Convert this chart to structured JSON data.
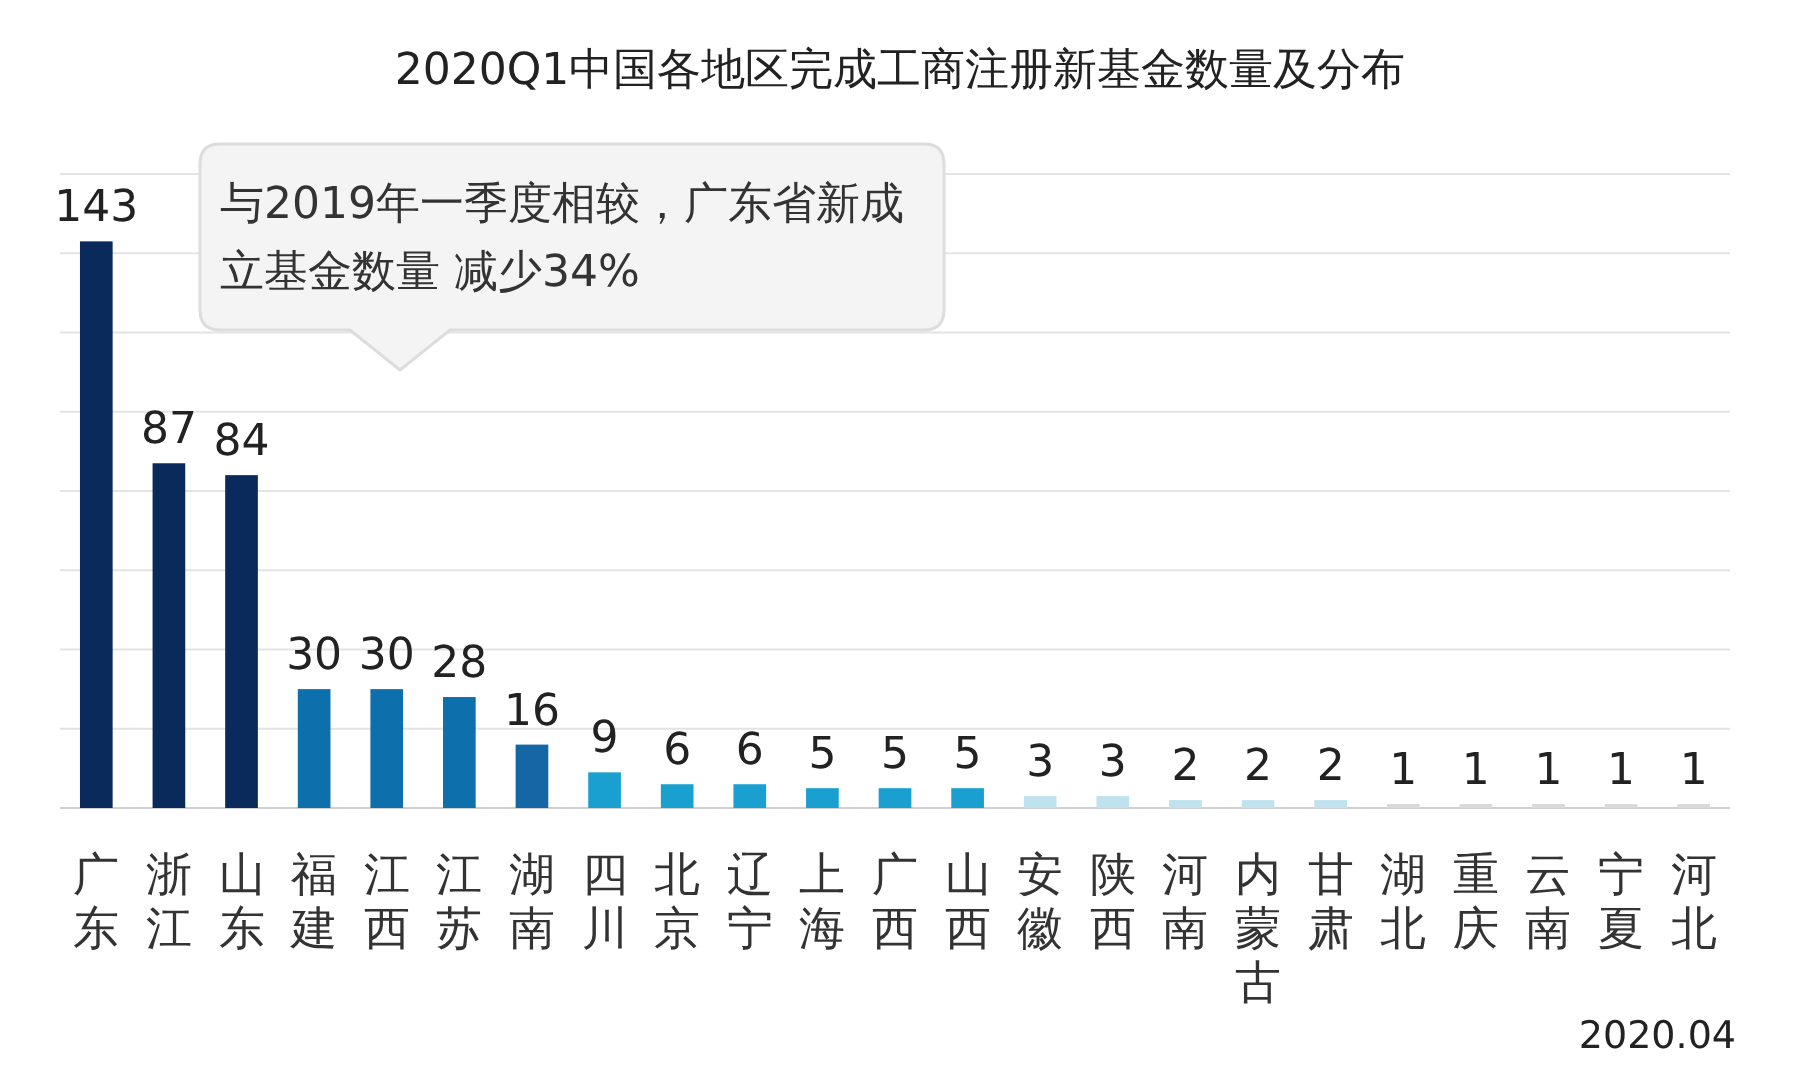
{
  "chart_data": {
    "type": "bar",
    "title": "2020Q1中国各地区完成工商注册新基金数量及分布",
    "categories": [
      "广东",
      "浙江",
      "山东",
      "福建",
      "江西",
      "江苏",
      "湖南",
      "四川",
      "北京",
      "辽宁",
      "上海",
      "广西",
      "山西",
      "安徽",
      "陕西",
      "河南",
      "内蒙古",
      "甘肃",
      "湖北",
      "重庆",
      "云南",
      "宁夏",
      "河北"
    ],
    "values": [
      143,
      87,
      84,
      30,
      30,
      28,
      16,
      9,
      6,
      6,
      5,
      5,
      5,
      3,
      3,
      2,
      2,
      2,
      1,
      1,
      1,
      1,
      1
    ],
    "colors": [
      "#0b2a5c",
      "#0b2a5c",
      "#0b2a5c",
      "#0e6fad",
      "#0e6fad",
      "#0e6fad",
      "#1466a5",
      "#1aa0d0",
      "#1aa0d0",
      "#1aa0d0",
      "#1aa0d0",
      "#1aa0d0",
      "#1aa0d0",
      "#bfe2ef",
      "#bfe2ef",
      "#bfe2ef",
      "#bfe2ef",
      "#bfe2ef",
      "#d9d9d9",
      "#d9d9d9",
      "#d9d9d9",
      "#d9d9d9",
      "#d9d9d9"
    ],
    "ylim": [
      0,
      160
    ],
    "yticks": [
      {
        "value": 0,
        "label": null
      },
      {
        "value": 20,
        "label": null
      },
      {
        "value": 40,
        "label": null
      },
      {
        "value": 60,
        "label": null
      },
      {
        "value": 80,
        "label": null
      },
      {
        "value": 100,
        "label": null
      },
      {
        "value": 120,
        "label": null
      },
      {
        "value": 140,
        "label": null
      },
      {
        "value": 160,
        "label": null
      }
    ],
    "grid": "y",
    "data_labels": true,
    "annotations": [
      "与2019年一季度相较，广东省新成立基金数量 减少34%",
      "2020.04"
    ]
  }
}
